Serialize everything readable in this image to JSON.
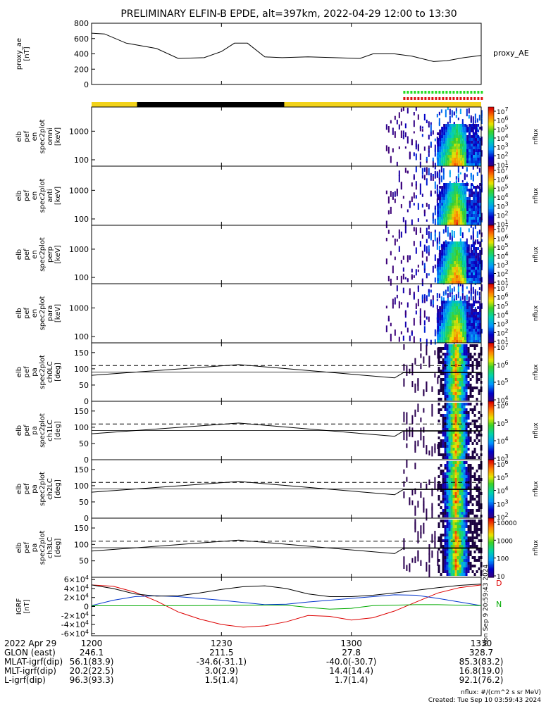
{
  "title": "PRELIMINARY ELFIN-B EPDE, alt=397km, 2022-04-29 12:00 to 13:30",
  "colors": {
    "line": "#000000",
    "sunlit_bar": "#f2d21a",
    "eclipse_bar": "#000000",
    "science_green": "#22dd22",
    "science_red": "#dd1111",
    "igrf_x": "#dd0000",
    "igrf_y": "#0033cc",
    "igrf_z": "#00aa00"
  },
  "time_axis": {
    "ticks": [
      "1200",
      "1230",
      "1300",
      "1330"
    ],
    "tick_minutes": [
      0,
      30,
      60,
      90
    ],
    "range_minutes": [
      0,
      90
    ]
  },
  "colorbars": [
    {
      "label": "nflux",
      "ticks": [
        "10^7",
        "10^6",
        "10^5",
        "10^4",
        "10^3",
        "10^2",
        "10^1"
      ]
    },
    {
      "label": "nflux",
      "ticks": [
        "10^7",
        "10^6",
        "10^5",
        "10^4",
        "10^3",
        "10^2",
        "10^1"
      ]
    },
    {
      "label": "nflux",
      "ticks": [
        "10^7",
        "10^6",
        "10^5",
        "10^4",
        "10^3",
        "10^2",
        "10^1"
      ]
    },
    {
      "label": "nflux",
      "ticks": [
        "10^7",
        "10^6",
        "10^5",
        "10^4",
        "10^3",
        "10^2",
        "10^1"
      ]
    },
    {
      "label": "nflux",
      "ticks": [
        "10^7",
        "10^6",
        "10^5",
        "10^4"
      ]
    },
    {
      "label": "nflux",
      "ticks": [
        "10^6",
        "10^5",
        "10^4",
        "10^3"
      ]
    },
    {
      "label": "nflux",
      "ticks": [
        "10^6",
        "10^5",
        "10^4",
        "10^3",
        "10^2"
      ]
    },
    {
      "label": "nflux",
      "ticks": [
        "10000",
        "1000",
        "100",
        "10"
      ]
    }
  ],
  "chart_data": [
    {
      "type": "line",
      "panel": "proxy_ae",
      "ylabel": [
        "proxy_ae",
        "[nT]"
      ],
      "legend": "proxy_AE",
      "ylim": [
        0,
        800
      ],
      "yticks": [
        0,
        200,
        400,
        600,
        800
      ],
      "x": [
        0,
        3,
        8,
        15,
        20,
        26,
        30,
        33,
        36,
        40,
        44,
        50,
        56,
        62,
        65,
        70,
        74,
        79,
        82,
        86,
        90
      ],
      "y": [
        670,
        660,
        540,
        470,
        340,
        350,
        430,
        540,
        540,
        360,
        350,
        360,
        350,
        340,
        400,
        400,
        370,
        300,
        310,
        350,
        380
      ]
    },
    {
      "type": "heatmap",
      "panel": "spec_omni",
      "ylabel": [
        "elb",
        "pef",
        "en",
        "spec2plot",
        "omni",
        "[keV]"
      ],
      "ylog": true,
      "ylim": [
        60,
        7000
      ],
      "yticks": [
        100,
        1000
      ],
      "onset_minute": 68,
      "burst_minute": 84
    },
    {
      "type": "heatmap",
      "panel": "spec_anti",
      "ylabel": [
        "elb",
        "pef",
        "en",
        "spec2plot",
        "anti",
        "[keV]"
      ],
      "ylog": true,
      "ylim": [
        60,
        7000
      ],
      "yticks": [
        100,
        1000
      ],
      "onset_minute": 68,
      "burst_minute": 84
    },
    {
      "type": "heatmap",
      "panel": "spec_perp",
      "ylabel": [
        "elb",
        "pef",
        "en",
        "spec2plot",
        "perp",
        "[keV]"
      ],
      "ylog": true,
      "ylim": [
        60,
        7000
      ],
      "yticks": [
        100,
        1000
      ],
      "onset_minute": 68,
      "burst_minute": 84
    },
    {
      "type": "heatmap",
      "panel": "spec_para",
      "ylabel": [
        "elb",
        "pef",
        "en",
        "spec2plot",
        "para",
        "[keV]"
      ],
      "ylog": true,
      "ylim": [
        60,
        7000
      ],
      "yticks": [
        100,
        1000
      ],
      "onset_minute": 68,
      "burst_minute": 84
    },
    {
      "type": "heatmap",
      "panel": "pa_ch0",
      "ylabel": [
        "elb",
        "pef",
        "pa",
        "spec2plot",
        "ch0LC",
        "[deg]"
      ],
      "ylim": [
        0,
        180
      ],
      "yticks": [
        0,
        50,
        100,
        150
      ],
      "onset_minute": 72,
      "burst_minute": 84,
      "lc_x": [
        0,
        34,
        70,
        72,
        90
      ],
      "lc_solid": [
        80,
        113,
        72,
        88,
        88
      ],
      "lc_dashed": [
        110,
        110,
        110,
        110,
        110
      ]
    },
    {
      "type": "heatmap",
      "panel": "pa_ch1",
      "ylabel": [
        "elb",
        "pef",
        "pa",
        "spec2plot",
        "ch1LC",
        "[deg]"
      ],
      "ylim": [
        0,
        180
      ],
      "yticks": [
        0,
        50,
        100,
        150
      ],
      "onset_minute": 72,
      "burst_minute": 84,
      "lc_x": [
        0,
        34,
        70,
        72,
        90
      ],
      "lc_solid": [
        80,
        113,
        72,
        88,
        88
      ],
      "lc_dashed": [
        110,
        110,
        110,
        110,
        110
      ]
    },
    {
      "type": "heatmap",
      "panel": "pa_ch2",
      "ylabel": [
        "elb",
        "pef",
        "pa",
        "spec2plot",
        "ch2LC",
        "[deg]"
      ],
      "ylim": [
        0,
        180
      ],
      "yticks": [
        0,
        50,
        100,
        150
      ],
      "onset_minute": 72,
      "burst_minute": 84,
      "lc_x": [
        0,
        34,
        70,
        72,
        90
      ],
      "lc_solid": [
        80,
        113,
        72,
        88,
        88
      ],
      "lc_dashed": [
        110,
        110,
        110,
        110,
        110
      ]
    },
    {
      "type": "heatmap",
      "panel": "pa_ch3",
      "ylabel": [
        "elb",
        "pef",
        "pa",
        "spec2plot",
        "ch3LC",
        "[deg]"
      ],
      "ylim": [
        0,
        180
      ],
      "yticks": [
        50,
        100,
        150
      ],
      "onset_minute": 72,
      "burst_minute": 84,
      "lc_x": [
        0,
        34,
        70,
        72,
        90
      ],
      "lc_solid": [
        80,
        113,
        72,
        88,
        88
      ],
      "lc_dashed": [
        110,
        110,
        110,
        110,
        110
      ]
    },
    {
      "type": "line",
      "panel": "igrf",
      "ylabel": [
        "IGRF",
        "[nT]"
      ],
      "ylim": [
        -65000,
        65000
      ],
      "yticks": [
        -60000,
        -40000,
        -20000,
        0,
        20000,
        40000,
        60000
      ],
      "ytick_labels": [
        "-6×10^4",
        "-4×10^4",
        "-2×10^4",
        "0",
        "2×10^4",
        "4×10^4",
        "6×10^4"
      ],
      "legend": [
        "D",
        "N"
      ],
      "x": [
        0,
        5,
        10,
        15,
        20,
        25,
        30,
        35,
        40,
        45,
        50,
        55,
        60,
        65,
        70,
        75,
        80,
        85,
        90
      ],
      "series": [
        {
          "name": "D",
          "values": [
            48000,
            45000,
            32000,
            12000,
            -12000,
            -28000,
            -40000,
            -46000,
            -43000,
            -34000,
            -20000,
            -22000,
            -30000,
            -25000,
            -10000,
            10000,
            30000,
            42000,
            48000
          ]
        },
        {
          "name": "N",
          "values": [
            2000,
            14000,
            22000,
            24000,
            22000,
            18000,
            14000,
            9000,
            4000,
            5000,
            10000,
            14000,
            18000,
            22000,
            26000,
            25000,
            18000,
            10000,
            2000
          ]
        },
        {
          "name": "",
          "values": [
            1500,
            1500,
            1500,
            1500,
            1800,
            2000,
            2500,
            3000,
            3200,
            3000,
            -2000,
            -6000,
            -4000,
            2000,
            3000,
            4000,
            4000,
            3000,
            2000
          ]
        },
        {
          "name": "",
          "values": [
            48000,
            40000,
            28000,
            23000,
            24000,
            30000,
            38000,
            44000,
            46000,
            40000,
            28000,
            22000,
            22000,
            25000,
            30000,
            36000,
            42000,
            47000,
            50000
          ]
        }
      ]
    }
  ],
  "ephemeris": {
    "date_label": "2022 Apr 29",
    "rows": [
      {
        "label": "GLON (east)",
        "values": [
          "246.1",
          "211.5",
          "27.8",
          "328.7"
        ]
      },
      {
        "label": "MLAT-igrf(dip)",
        "values": [
          "56.1(83.9)",
          "-34.6(-31.1)",
          "-40.0(-30.7)",
          "85.3(83.2)"
        ]
      },
      {
        "label": "MLT-igrf(dip)",
        "values": [
          "20.2(22.5)",
          "3.0(2.9)",
          "14.4(14.4)",
          "16.8(19.0)"
        ]
      },
      {
        "label": "L-igrf(dip)",
        "values": [
          "96.3(93.3)",
          "1.5(1.4)",
          "1.7(1.4)",
          "92.1(76.2)"
        ]
      }
    ]
  },
  "footer": {
    "units": "nflux: #/(cm^2 s sr MeV)",
    "created": "Created: Tue Sep 10 03:59:43 2024",
    "side_stamp": "Mon Sep  9 20:59:43 2024"
  }
}
